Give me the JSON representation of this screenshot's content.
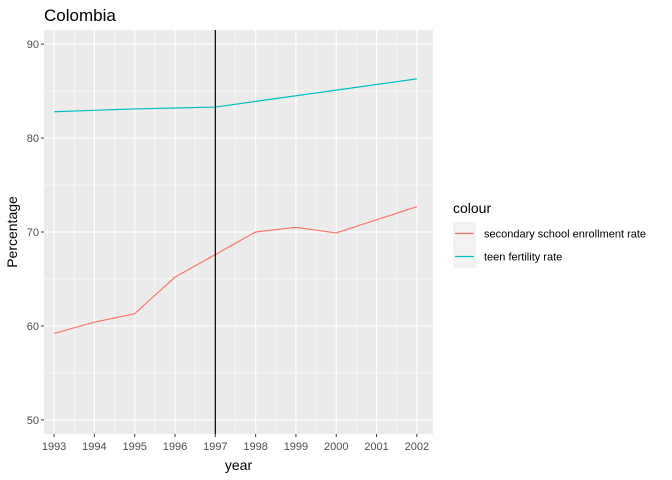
{
  "chart_data": {
    "type": "line",
    "title": "Colombia",
    "xlabel": "year",
    "ylabel": "Percentage",
    "x": [
      1993,
      1994,
      1995,
      1996,
      1997,
      1998,
      1999,
      2000,
      2001,
      2002
    ],
    "xlim": [
      1992.75,
      2002.4
    ],
    "ylim": [
      48.5,
      91.5
    ],
    "yticks": [
      50,
      60,
      70,
      80,
      90
    ],
    "grid": true,
    "vline": 1997,
    "legend": {
      "title": "colour",
      "placement": "right"
    },
    "series": [
      {
        "name": "secondary school enrollment rate",
        "color": "#F8766D",
        "values": [
          59.2,
          60.4,
          61.3,
          65.2,
          67.6,
          70.0,
          70.5,
          69.9,
          71.3,
          72.7
        ]
      },
      {
        "name": "teen fertility rate",
        "color": "#00BFC4",
        "values": [
          82.8,
          82.95,
          83.1,
          83.2,
          83.3,
          83.9,
          84.5,
          85.1,
          85.7,
          86.3
        ]
      }
    ]
  }
}
